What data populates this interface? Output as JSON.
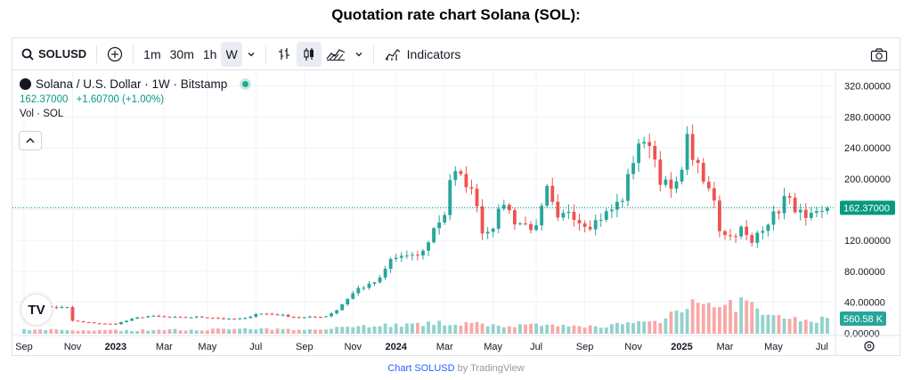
{
  "page_title": "Quotation rate chart Solana (SOL):",
  "toolbar": {
    "symbol": "SOLUSD",
    "intervals": [
      "1m",
      "30m",
      "1h",
      "W"
    ],
    "active_interval": "W",
    "indicators_label": "Indicators"
  },
  "legend": {
    "title": "Solana / U.S. Dollar · 1W · Bitstamp",
    "price": "162.37000",
    "change": "+1.60700 (+1.00%)",
    "volume_label": "Vol · SOL"
  },
  "attribution": {
    "link_text": "Chart SOLUSD",
    "suffix": "by TradingView"
  },
  "colors": {
    "up": "#26a69a",
    "down": "#ef5350",
    "up_volume": "#92d2cc",
    "down_volume": "#f7a9a7",
    "grid": "#f0f3fa",
    "price_line": "#089981"
  },
  "chart_data": {
    "type": "candlestick",
    "interval": "1W",
    "exchange": "Bitstamp",
    "ylim": [
      -10,
      330
    ],
    "y_ticks": [
      "320.00000",
      "280.00000",
      "240.00000",
      "200.00000",
      "160.00000",
      "120.00000",
      "80.00000",
      "40.00000",
      "0.00000"
    ],
    "x_ticks": [
      {
        "label": "Sep",
        "bold": false,
        "week": 0
      },
      {
        "label": "Nov",
        "bold": false,
        "week": 9
      },
      {
        "label": "2023",
        "bold": true,
        "week": 17
      },
      {
        "label": "Mar",
        "bold": false,
        "week": 26
      },
      {
        "label": "May",
        "bold": false,
        "week": 34
      },
      {
        "label": "Jul",
        "bold": false,
        "week": 43
      },
      {
        "label": "Sep",
        "bold": false,
        "week": 52
      },
      {
        "label": "Nov",
        "bold": false,
        "week": 61
      },
      {
        "label": "2024",
        "bold": true,
        "week": 69
      },
      {
        "label": "Mar",
        "bold": false,
        "week": 78
      },
      {
        "label": "May",
        "bold": false,
        "week": 87
      },
      {
        "label": "Jul",
        "bold": false,
        "week": 95
      },
      {
        "label": "Sep",
        "bold": false,
        "week": 104
      },
      {
        "label": "Nov",
        "bold": false,
        "week": 113
      },
      {
        "label": "2025",
        "bold": true,
        "week": 122
      },
      {
        "label": "Mar",
        "bold": false,
        "week": 130
      },
      {
        "label": "May",
        "bold": false,
        "week": 139
      },
      {
        "label": "Jul",
        "bold": false,
        "week": 148
      }
    ],
    "last_price_label": "162.37000",
    "last_price": 162.37,
    "volume_label": "560.58 K",
    "close_keypoints": [
      [
        0,
        35
      ],
      [
        2,
        36
      ],
      [
        4,
        34
      ],
      [
        6,
        33
      ],
      [
        8,
        33
      ],
      [
        9,
        16
      ],
      [
        11,
        14
      ],
      [
        13,
        13
      ],
      [
        15,
        12
      ],
      [
        17,
        12
      ],
      [
        19,
        16
      ],
      [
        21,
        20
      ],
      [
        23,
        22
      ],
      [
        26,
        21
      ],
      [
        29,
        20
      ],
      [
        32,
        21
      ],
      [
        35,
        20
      ],
      [
        38,
        18
      ],
      [
        41,
        19
      ],
      [
        43,
        25
      ],
      [
        45,
        25
      ],
      [
        48,
        23
      ],
      [
        51,
        20
      ],
      [
        54,
        21
      ],
      [
        56,
        22
      ],
      [
        58,
        30
      ],
      [
        60,
        45
      ],
      [
        62,
        58
      ],
      [
        64,
        62
      ],
      [
        66,
        70
      ],
      [
        68,
        95
      ],
      [
        70,
        100
      ],
      [
        72,
        98
      ],
      [
        74,
        105
      ],
      [
        76,
        135
      ],
      [
        78,
        155
      ],
      [
        79,
        200
      ],
      [
        80,
        205
      ],
      [
        82,
        195
      ],
      [
        84,
        170
      ],
      [
        85,
        130
      ],
      [
        87,
        140
      ],
      [
        89,
        170
      ],
      [
        91,
        145
      ],
      [
        93,
        140
      ],
      [
        95,
        135
      ],
      [
        97,
        185
      ],
      [
        99,
        145
      ],
      [
        101,
        160
      ],
      [
        103,
        145
      ],
      [
        105,
        140
      ],
      [
        107,
        150
      ],
      [
        109,
        160
      ],
      [
        111,
        175
      ],
      [
        113,
        225
      ],
      [
        114,
        248
      ],
      [
        115,
        240
      ],
      [
        116,
        250
      ],
      [
        118,
        200
      ],
      [
        120,
        185
      ],
      [
        121,
        190
      ],
      [
        123,
        250
      ],
      [
        124,
        230
      ],
      [
        126,
        195
      ],
      [
        128,
        175
      ],
      [
        129,
        135
      ],
      [
        131,
        125
      ],
      [
        133,
        135
      ],
      [
        135,
        115
      ],
      [
        136,
        130
      ],
      [
        138,
        145
      ],
      [
        140,
        160
      ],
      [
        141,
        175
      ],
      [
        142,
        170
      ],
      [
        144,
        155
      ],
      [
        145,
        145
      ],
      [
        146,
        150
      ],
      [
        148,
        155
      ],
      [
        149,
        162.37
      ]
    ],
    "volume_keypoints": [
      [
        0,
        0.06
      ],
      [
        10,
        0.05
      ],
      [
        20,
        0.05
      ],
      [
        30,
        0.06
      ],
      [
        40,
        0.07
      ],
      [
        50,
        0.06
      ],
      [
        60,
        0.1
      ],
      [
        66,
        0.13
      ],
      [
        72,
        0.13
      ],
      [
        78,
        0.16
      ],
      [
        84,
        0.14
      ],
      [
        90,
        0.12
      ],
      [
        96,
        0.12
      ],
      [
        104,
        0.1
      ],
      [
        112,
        0.15
      ],
      [
        118,
        0.19
      ],
      [
        121,
        0.36
      ],
      [
        124,
        0.52
      ],
      [
        126,
        0.52
      ],
      [
        128,
        0.34
      ],
      [
        131,
        0.4
      ],
      [
        134,
        0.48
      ],
      [
        136,
        0.34
      ],
      [
        140,
        0.22
      ],
      [
        145,
        0.2
      ],
      [
        149,
        0.22
      ]
    ]
  }
}
